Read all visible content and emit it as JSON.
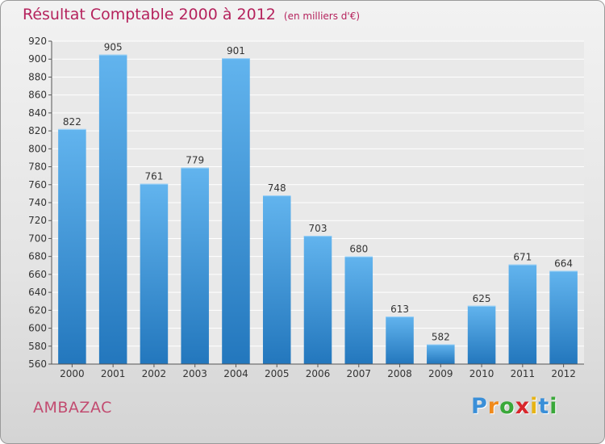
{
  "header": {
    "title": "Résultat Comptable 2000 à 2012",
    "subtitle": "(en milliers d'€)"
  },
  "commune": "AMBAZAC",
  "brand": {
    "letters": [
      "P",
      "r",
      "o",
      "x",
      "i",
      "t",
      "i"
    ],
    "colors": [
      "#3a8fd8",
      "#f08a1c",
      "#3aa83a",
      "#d8262c",
      "#e7b416",
      "#3a8fd8",
      "#3aa83a"
    ]
  },
  "colors": {
    "bar_light": "#62b4ee",
    "bar_dark": "#2377bd",
    "grid": "#ffffff",
    "axis": "#555555"
  },
  "chart_data": {
    "type": "bar",
    "title": "Résultat Comptable 2000 à 2012",
    "subtitle": "(en milliers d'€)",
    "xlabel": "",
    "ylabel": "",
    "categories": [
      "2000",
      "2001",
      "2002",
      "2003",
      "2004",
      "2005",
      "2006",
      "2007",
      "2008",
      "2009",
      "2010",
      "2011",
      "2012"
    ],
    "values": [
      822,
      905,
      761,
      779,
      901,
      748,
      703,
      680,
      613,
      582,
      625,
      671,
      664
    ],
    "ylim": [
      560,
      920
    ],
    "yticks": [
      560,
      580,
      600,
      620,
      640,
      660,
      680,
      700,
      720,
      740,
      760,
      780,
      800,
      820,
      840,
      860,
      880,
      900,
      920
    ],
    "grid": true,
    "legend": "none"
  }
}
